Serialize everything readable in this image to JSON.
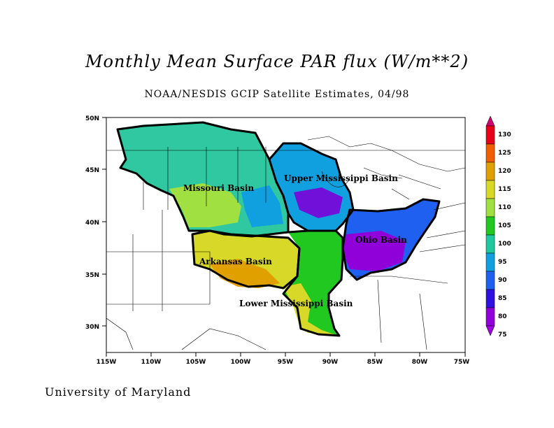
{
  "title": "Monthly Mean Surface PAR flux (W/m**2)",
  "subtitle": "NOAA/NESDIS GCIP Satellite Estimates, 04/98",
  "credit": "University of Maryland",
  "axes": {
    "lat_labels": [
      "50N",
      "45N",
      "40N",
      "35N",
      "30N"
    ],
    "lon_labels": [
      "115W",
      "110W",
      "105W",
      "100W",
      "95W",
      "90W",
      "85W",
      "80W",
      "75W"
    ]
  },
  "basins": [
    {
      "id": "missouri",
      "label": "Missouri Basin"
    },
    {
      "id": "upper-mississippi",
      "label": "Upper Mississippi Basin"
    },
    {
      "id": "ohio",
      "label": "Ohio Basin"
    },
    {
      "id": "arkansas",
      "label": "Arkansas Basin"
    },
    {
      "id": "lower-mississippi",
      "label": "Lower Mississippi Basin"
    }
  ],
  "legend": {
    "labels": [
      "130",
      "125",
      "120",
      "115",
      "110",
      "105",
      "100",
      "95",
      "90",
      "85",
      "80",
      "75"
    ],
    "colors": [
      "#d00070",
      "#e8001a",
      "#f06000",
      "#e0a000",
      "#d8d828",
      "#a0e040",
      "#20c820",
      "#20c8a0",
      "#10a0e0",
      "#2060f0",
      "#3010e0",
      "#9000d8",
      "#a000e0"
    ]
  },
  "colors": {
    "missouri_main": "#30c8a0",
    "missouri_warm": "#a0e040",
    "arkansas_main": "#d8d828",
    "arkansas_warm": "#e0a000",
    "upper_miss_main": "#10a0e0",
    "upper_miss_core": "#7010d8",
    "ohio_main": "#2060f0",
    "ohio_core": "#9000d8",
    "lower_miss_main": "#20c820",
    "lower_miss_warm": "#d8d828"
  }
}
